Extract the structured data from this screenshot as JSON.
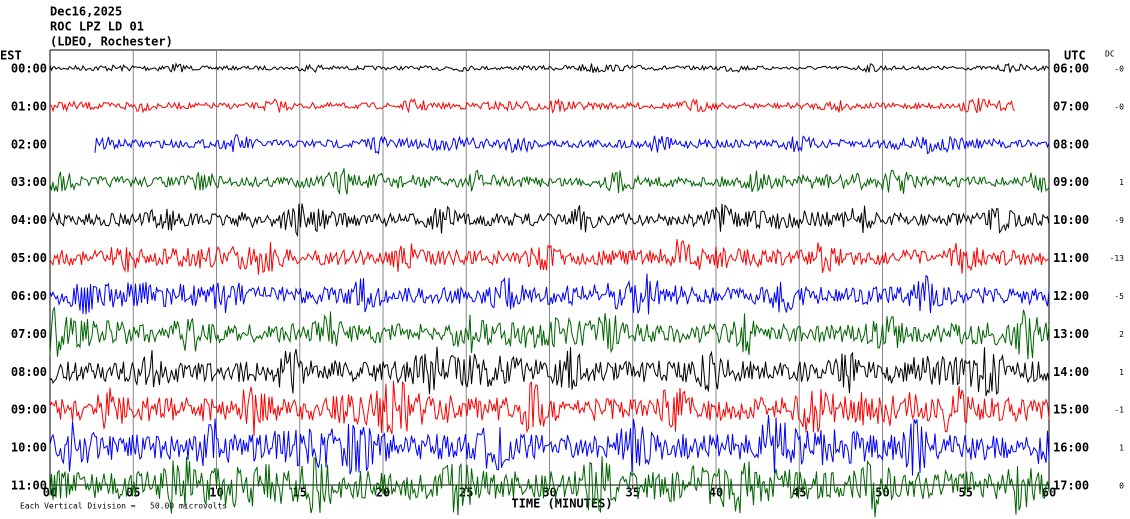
{
  "chart_data": {
    "type": "helicorder",
    "header": [
      "Dec16,2025",
      "ROC LPZ LD 01",
      "(LDEO, Rochester)"
    ],
    "left_axis_title": "EST",
    "right_axis_title": "UTC",
    "dc_title": "DC",
    "xlabel": "TIME (MINUTES)",
    "footnote": "Each Vertical Division =   50.00 microvolts",
    "xlim": [
      0,
      60
    ],
    "xticks": [
      {
        "value": 0,
        "label": "00"
      },
      {
        "value": 5,
        "label": "05"
      },
      10,
      15,
      20,
      25,
      30,
      35,
      40,
      45,
      50,
      55,
      60
    ],
    "grid": true,
    "traces": [
      {
        "est": "00:00",
        "utc": "06:00",
        "dc": "-0",
        "color": "#000000",
        "start": 0,
        "end": 60
      },
      {
        "est": "01:00",
        "utc": "07:00",
        "dc": "-0",
        "color": "#ff0000",
        "start": 0,
        "end": 58
      },
      {
        "est": "02:00",
        "utc": "08:00",
        "dc": null,
        "color": "#0000ff",
        "start": 2.7,
        "end": 60
      },
      {
        "est": "03:00",
        "utc": "09:00",
        "dc": "1",
        "color": "#006400",
        "start": 0,
        "end": 60
      },
      {
        "est": "04:00",
        "utc": "10:00",
        "dc": "-9",
        "color": "#000000",
        "start": 0,
        "end": 60
      },
      {
        "est": "05:00",
        "utc": "11:00",
        "dc": "-13",
        "color": "#ff0000",
        "start": 0,
        "end": 60
      },
      {
        "est": "06:00",
        "utc": "12:00",
        "dc": "-5",
        "color": "#0000ff",
        "start": 0,
        "end": 60
      },
      {
        "est": "07:00",
        "utc": "13:00",
        "dc": "2",
        "color": "#006400",
        "start": 0,
        "end": 60
      },
      {
        "est": "08:00",
        "utc": "14:00",
        "dc": "1",
        "color": "#000000",
        "start": 0,
        "end": 60
      },
      {
        "est": "09:00",
        "utc": "15:00",
        "dc": "-1",
        "color": "#ff0000",
        "start": 0,
        "end": 60
      },
      {
        "est": "10:00",
        "utc": "16:00",
        "dc": "1",
        "color": "#0000ff",
        "start": 0,
        "end": 60
      },
      {
        "est": "11:00",
        "utc": "17:00",
        "dc": "0",
        "color": "#006400",
        "start": 0,
        "end": 60
      }
    ]
  }
}
